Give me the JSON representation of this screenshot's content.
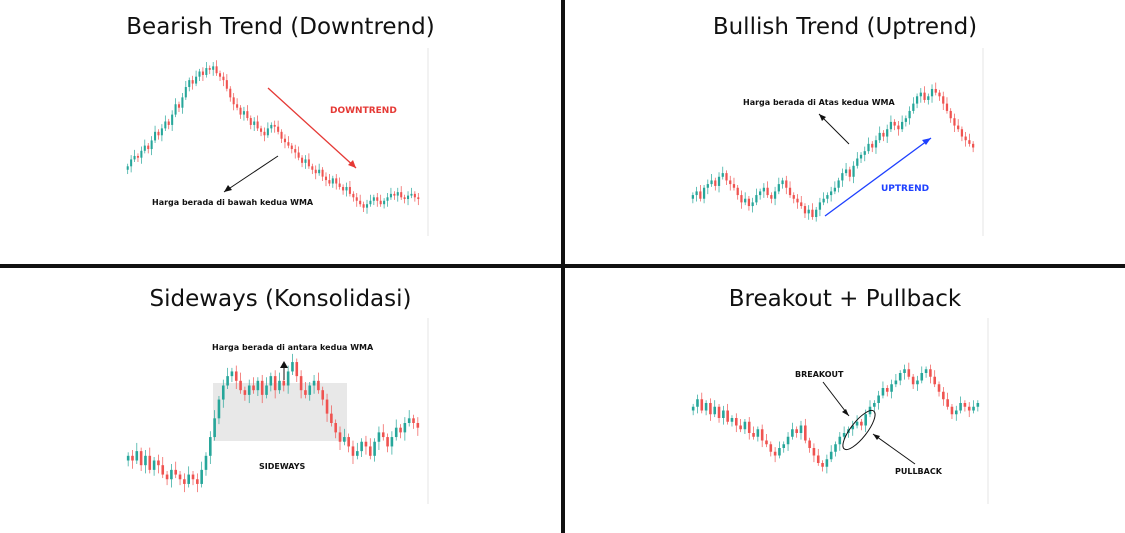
{
  "colors": {
    "up": "#26a69a",
    "down": "#ef5350",
    "wma_fast": "#f57c00",
    "wma_slow": "#ffb74d",
    "arrow_down": "#e53935",
    "arrow_up": "#1e40ff",
    "label_black": "#111111"
  },
  "chart_data": [
    {
      "id": "bearish",
      "type": "candlestick",
      "title": "Bearish Trend (Downtrend)",
      "series_close": [
        40,
        44,
        46,
        45,
        49,
        52,
        50,
        55,
        60,
        58,
        62,
        66,
        64,
        70,
        76,
        74,
        80,
        86,
        90,
        88,
        92,
        95,
        93,
        97,
        96,
        98,
        94,
        92,
        90,
        85,
        80,
        76,
        74,
        70,
        72,
        68,
        64,
        66,
        62,
        60,
        58,
        62,
        64,
        63,
        60,
        56,
        54,
        52,
        50,
        48,
        45,
        42,
        44,
        40,
        38,
        36,
        38,
        34,
        32,
        30,
        33,
        30,
        28,
        26,
        28,
        24,
        22,
        20,
        18,
        16,
        18,
        20,
        22,
        20,
        18,
        20,
        22,
        24,
        23,
        25,
        22,
        21,
        23,
        24,
        22,
        21
      ],
      "annotations": {
        "trend_label": "DOWNTREND",
        "price_label": "Harga berada di bawah kedua WMA"
      }
    },
    {
      "id": "bullish",
      "type": "candlestick",
      "title": "Bullish Trend (Uptrend)",
      "series_close": [
        30,
        32,
        28,
        34,
        36,
        38,
        35,
        40,
        42,
        38,
        36,
        34,
        30,
        26,
        28,
        24,
        26,
        30,
        32,
        34,
        30,
        28,
        32,
        36,
        38,
        34,
        30,
        28,
        26,
        24,
        20,
        22,
        18,
        22,
        26,
        28,
        30,
        32,
        34,
        38,
        42,
        44,
        40,
        46,
        50,
        52,
        54,
        58,
        56,
        60,
        64,
        62,
        66,
        70,
        68,
        66,
        70,
        72,
        76,
        80,
        84,
        86,
        82,
        84,
        88,
        86,
        84,
        80,
        76,
        72,
        68,
        66,
        62,
        60,
        58,
        56
      ],
      "annotations": {
        "trend_label": "UPTREND",
        "price_label": "Harga berada di Atas kedua WMA"
      }
    },
    {
      "id": "sideways",
      "type": "candlestick",
      "title": "Sideways (Konsolidasi)",
      "series_close": [
        30,
        28,
        32,
        26,
        30,
        24,
        28,
        26,
        22,
        20,
        24,
        22,
        20,
        18,
        22,
        20,
        18,
        24,
        30,
        38,
        46,
        54,
        60,
        64,
        66,
        62,
        58,
        56,
        60,
        58,
        62,
        56,
        60,
        64,
        58,
        62,
        60,
        66,
        70,
        64,
        58,
        56,
        60,
        62,
        58,
        54,
        48,
        44,
        40,
        36,
        38,
        34,
        30,
        32,
        36,
        34,
        30,
        36,
        40,
        38,
        34,
        38,
        42,
        40,
        44,
        46,
        44,
        42
      ],
      "annotations": {
        "range_label": "SIDEWAYS",
        "price_label": "Harga berada di antara kedua WMA"
      }
    },
    {
      "id": "breakout",
      "type": "candlestick",
      "title": "Breakout  + Pullback",
      "series_close": [
        60,
        64,
        58,
        62,
        56,
        60,
        54,
        58,
        52,
        54,
        50,
        48,
        52,
        46,
        44,
        48,
        42,
        40,
        36,
        34,
        38,
        40,
        44,
        48,
        46,
        50,
        42,
        38,
        34,
        30,
        28,
        32,
        36,
        40,
        44,
        46,
        48,
        50,
        52,
        50,
        56,
        60,
        62,
        66,
        70,
        68,
        72,
        74,
        78,
        80,
        76,
        72,
        74,
        78,
        80,
        76,
        72,
        68,
        64,
        60,
        56,
        58,
        62,
        60,
        58,
        60,
        62
      ],
      "annotations": {
        "breakout_label": "BREAKOUT",
        "pullback_label": "PULLBACK"
      }
    }
  ]
}
